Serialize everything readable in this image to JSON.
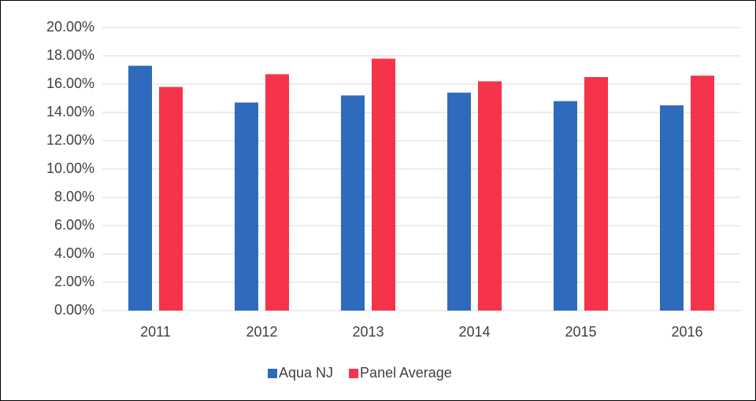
{
  "chart_data": {
    "type": "bar",
    "categories": [
      "2011",
      "2012",
      "2013",
      "2014",
      "2015",
      "2016"
    ],
    "series": [
      {
        "name": "Aqua NJ",
        "color": "#2e6bbd",
        "values": [
          17.3,
          14.7,
          15.2,
          15.4,
          14.8,
          14.5
        ]
      },
      {
        "name": "Panel Average",
        "color": "#f5334a",
        "values": [
          15.8,
          16.7,
          17.8,
          16.2,
          16.5,
          16.6
        ]
      }
    ],
    "ylim": [
      0,
      20
    ],
    "yticks": [
      {
        "value": 0,
        "label": "0.00%"
      },
      {
        "value": 2,
        "label": "2.00%"
      },
      {
        "value": 4,
        "label": "4.00%"
      },
      {
        "value": 6,
        "label": "6.00%"
      },
      {
        "value": 8,
        "label": "8.00%"
      },
      {
        "value": 10,
        "label": "10.00%"
      },
      {
        "value": 12,
        "label": "12.00%"
      },
      {
        "value": 14,
        "label": "14.00%"
      },
      {
        "value": 16,
        "label": "16.00%"
      },
      {
        "value": 18,
        "label": "18.00%"
      },
      {
        "value": 20,
        "label": "20.00%"
      }
    ],
    "grid": true,
    "legend": "bottom"
  }
}
